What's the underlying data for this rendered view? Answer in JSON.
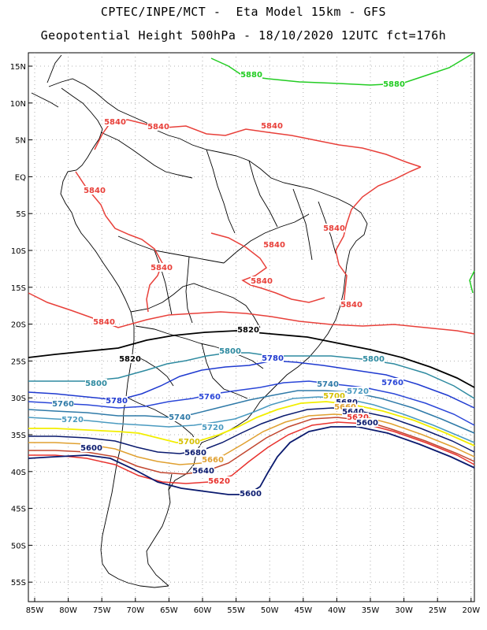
{
  "header": {
    "line1": "CPTEC/INPE/MCT -  Eta Model 15km - GFS",
    "line2": "Geopotential Height 500hPa - 18/10/2020 12UTC fct=176h"
  },
  "map": {
    "lat_labels": [
      "15N",
      "10N",
      "5N",
      "EQ",
      "5S",
      "10S",
      "15S",
      "20S",
      "25S",
      "30S",
      "35S",
      "40S",
      "45S",
      "50S",
      "55S"
    ],
    "lon_labels": [
      "85W",
      "80W",
      "75W",
      "70W",
      "65W",
      "60W",
      "55W",
      "50W",
      "45W",
      "40W",
      "35W",
      "30W",
      "25W",
      "20W"
    ],
    "contour_colors": {
      "5600": "#0a1a6e",
      "5620": "#e8322e",
      "5640": "#c2462f",
      "5660": "#e0a030",
      "5680": "#d6b020",
      "5700": "#f2ee00",
      "5720": "#4a9ac0",
      "5740": "#2f7aa8",
      "5760": "#2a46d8",
      "5780": "#1f3ad0",
      "5800": "#2e8aa0",
      "5820": "#000000",
      "5840": "#e8403a",
      "5880": "#22cc22"
    },
    "contour_labels": [
      {
        "v": "5880",
        "c": "#22cc22"
      },
      {
        "v": "5880",
        "c": "#22cc22"
      },
      {
        "v": "5840",
        "c": "#e8403a"
      },
      {
        "v": "5840",
        "c": "#e8403a"
      },
      {
        "v": "5840",
        "c": "#e8403a"
      },
      {
        "v": "5840",
        "c": "#e8403a"
      },
      {
        "v": "5840",
        "c": "#e8403a"
      },
      {
        "v": "5840",
        "c": "#e8403a"
      },
      {
        "v": "5840",
        "c": "#e8403a"
      },
      {
        "v": "5840",
        "c": "#e8403a"
      },
      {
        "v": "5840",
        "c": "#e8403a"
      },
      {
        "v": "5840",
        "c": "#e8403a"
      },
      {
        "v": "5820",
        "c": "#000000"
      },
      {
        "v": "5820",
        "c": "#000000"
      },
      {
        "v": "5800",
        "c": "#2e8aa0"
      },
      {
        "v": "5800",
        "c": "#2e8aa0"
      },
      {
        "v": "5800",
        "c": "#2e8aa0"
      },
      {
        "v": "5780",
        "c": "#1f3ad0"
      },
      {
        "v": "5780",
        "c": "#1f3ad0"
      },
      {
        "v": "5760",
        "c": "#2a46d8"
      },
      {
        "v": "5760",
        "c": "#2f7aa8"
      },
      {
        "v": "5760",
        "c": "#2a46d8"
      },
      {
        "v": "5740",
        "c": "#2f7aa8"
      },
      {
        "v": "5740",
        "c": "#2f7aa8"
      },
      {
        "v": "5720",
        "c": "#4a9ac0"
      },
      {
        "v": "5720",
        "c": "#4a9ac0"
      },
      {
        "v": "5720",
        "c": "#4a9ac0"
      },
      {
        "v": "5700",
        "c": "#d6c000"
      },
      {
        "v": "5700",
        "c": "#d6c000"
      },
      {
        "v": "5680",
        "c": "#0a1a6e"
      },
      {
        "v": "5680",
        "c": "#0a1a6e"
      },
      {
        "v": "5660",
        "c": "#e0a030"
      },
      {
        "v": "5660",
        "c": "#e0a030"
      },
      {
        "v": "5640",
        "c": "#0a1a6e"
      },
      {
        "v": "5640",
        "c": "#0a1a6e"
      },
      {
        "v": "5620",
        "c": "#e8322e"
      },
      {
        "v": "5620",
        "c": "#e8322e"
      },
      {
        "v": "5600",
        "c": "#0a1a6e"
      },
      {
        "v": "5600",
        "c": "#0a1a6e"
      },
      {
        "v": "5600",
        "c": "#0a1a6e"
      }
    ]
  }
}
